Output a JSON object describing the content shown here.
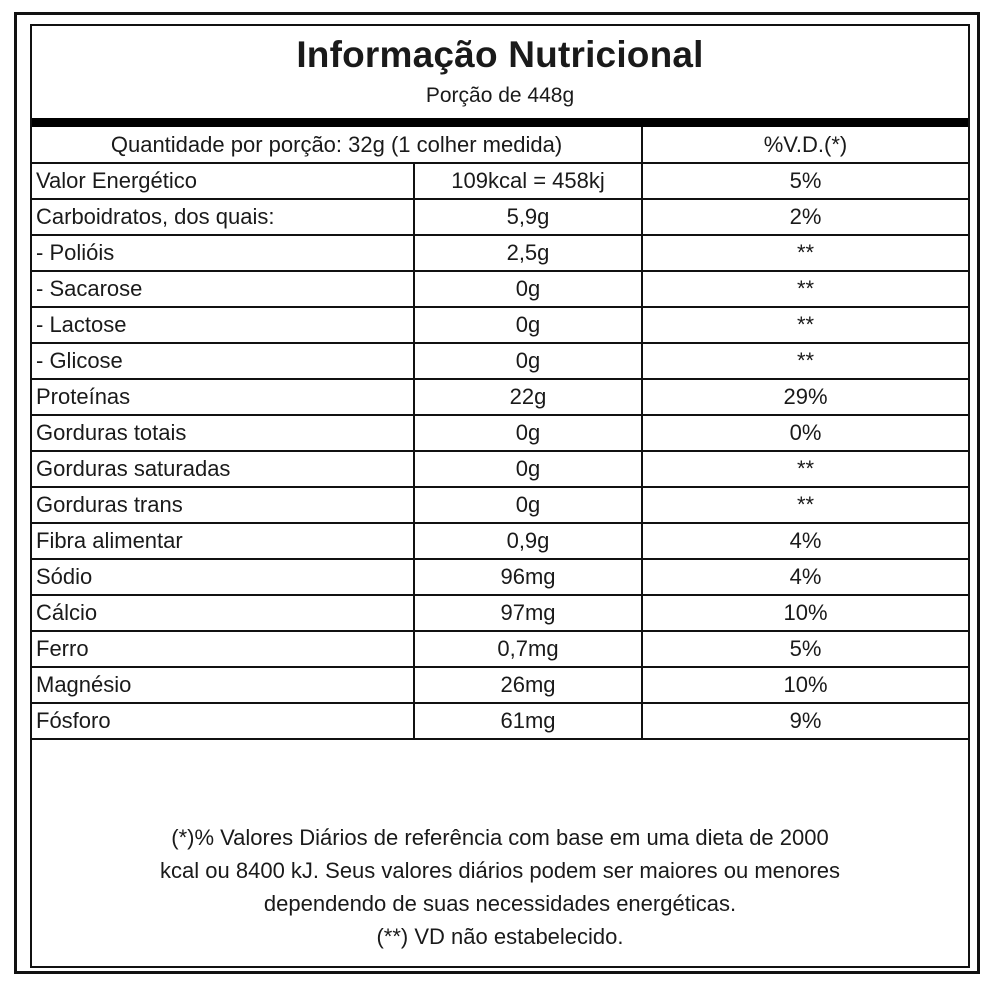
{
  "label": {
    "title": "Informação Nutricional",
    "portion": "Porção de 448g",
    "header": {
      "serving": "Quantidade por porção: 32g (1 colher medida)",
      "dv": "%V.D.(*)"
    },
    "rows": [
      {
        "name": "Valor Energético",
        "amount": "109kcal = 458kj",
        "dv": "5%"
      },
      {
        "name": "Carboidratos, dos quais:",
        "amount": "5,9g",
        "dv": "2%"
      },
      {
        "name": " - Polióis",
        "amount": "2,5g",
        "dv": "**"
      },
      {
        "name": " - Sacarose",
        "amount": "0g",
        "dv": "**"
      },
      {
        "name": " - Lactose",
        "amount": "0g",
        "dv": "**"
      },
      {
        "name": " - Glicose",
        "amount": "0g",
        "dv": "**"
      },
      {
        "name": "Proteínas",
        "amount": "22g",
        "dv": "29%"
      },
      {
        "name": "Gorduras totais",
        "amount": "0g",
        "dv": "0%"
      },
      {
        "name": "Gorduras saturadas",
        "amount": "0g",
        "dv": "**"
      },
      {
        "name": "Gorduras trans",
        "amount": "0g",
        "dv": "**"
      },
      {
        "name": "Fibra alimentar",
        "amount": "0,9g",
        "dv": "4%"
      },
      {
        "name": "Sódio",
        "amount": "96mg",
        "dv": "4%"
      },
      {
        "name": "Cálcio",
        "amount": "97mg",
        "dv": "10%"
      },
      {
        "name": "Ferro",
        "amount": "0,7mg",
        "dv": "5%"
      },
      {
        "name": "Magnésio",
        "amount": "26mg",
        "dv": "10%"
      },
      {
        "name": "Fósforo",
        "amount": "61mg",
        "dv": "9%"
      }
    ],
    "footnote": [
      "(*)% Valores Diários de referência com base em uma dieta de 2000",
      "kcal ou 8400 kJ. Seus valores diários podem ser maiores ou menores",
      "dependendo de suas necessidades energéticas.",
      "(**) VD não estabelecido."
    ]
  }
}
